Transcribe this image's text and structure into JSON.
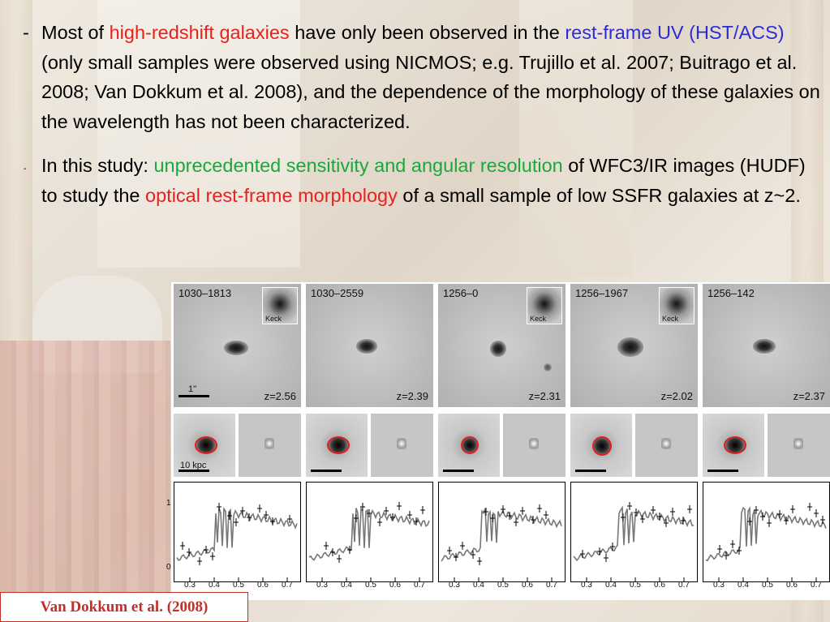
{
  "bullets": [
    {
      "marker": "-",
      "parts": [
        {
          "text": "Most of ",
          "color": "black"
        },
        {
          "text": "high-redshift galaxies",
          "color": "red"
        },
        {
          "text": " have only been observed in the ",
          "color": "black"
        },
        {
          "text": "rest-frame UV (HST/ACS)",
          "color": "blue"
        },
        {
          "text": " (only small samples were observed using NICMOS; e.g. Trujillo et al. 2007; Buitrago et al. 2008; Van Dokkum et al. 2008), and the dependence of the morphology of these galaxies on the wavelength has not been characterized.",
          "color": "black"
        }
      ]
    },
    {
      "marker": "-",
      "parts": [
        {
          "text": "In this study: ",
          "color": "black"
        },
        {
          "text": "unprecedented sensitivity and angular resolution",
          "color": "green"
        },
        {
          "text": " of WFC3/IR images (HUDF) to study the ",
          "color": "black"
        },
        {
          "text": "optical rest-frame morphology",
          "color": "red"
        },
        {
          "text": " of a small sample of low SSFR galaxies at z~2.",
          "color": "black"
        }
      ]
    }
  ],
  "figure": {
    "galaxies": [
      {
        "id": "1030–1813",
        "z": "z=2.56",
        "keck": true
      },
      {
        "id": "1030–2559",
        "z": "z=2.39",
        "keck": false
      },
      {
        "id": "1256–0",
        "z": "z=2.31",
        "keck": true
      },
      {
        "id": "1256–1967",
        "z": "z=2.02",
        "keck": true
      },
      {
        "id": "1256–142",
        "z": "z=2.37",
        "keck": false
      }
    ],
    "keck_label": "Keck",
    "scale_arcsec_label": "1''",
    "scale_kpc_label": "10 kpc",
    "sed_x_ticks": [
      "0.3",
      "0.4",
      "0.5",
      "0.6",
      "0.7"
    ],
    "sed_y_ticks": [
      "1",
      "0"
    ]
  },
  "citation": "Van Dokkum et al. (2008)",
  "colors": {
    "red": "#e8211f",
    "blue": "#2b2bd8",
    "green": "#1aa73c",
    "citation": "#c0302a"
  }
}
